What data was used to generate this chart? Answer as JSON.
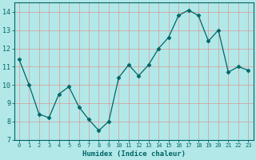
{
  "x": [
    0,
    1,
    2,
    3,
    4,
    5,
    6,
    7,
    8,
    9,
    10,
    11,
    12,
    13,
    14,
    15,
    16,
    17,
    18,
    19,
    20,
    21,
    22,
    23
  ],
  "y": [
    11.4,
    10.0,
    8.4,
    8.2,
    9.5,
    9.9,
    8.8,
    8.1,
    7.5,
    8.0,
    10.4,
    11.1,
    10.5,
    11.1,
    12.0,
    12.6,
    13.8,
    14.1,
    13.8,
    12.4,
    13.0,
    10.7,
    11.0,
    10.8
  ],
  "xlabel": "Humidex (Indice chaleur)",
  "xtick_labels": [
    "0",
    "1",
    "2",
    "3",
    "4",
    "5",
    "6",
    "7",
    "8",
    "9",
    "10",
    "11",
    "12",
    "13",
    "14",
    "15",
    "16",
    "17",
    "18",
    "19",
    "20",
    "21",
    "22",
    "23"
  ],
  "yticks": [
    7,
    8,
    9,
    10,
    11,
    12,
    13,
    14
  ],
  "ylim": [
    7,
    14.5
  ],
  "xlim": [
    -0.5,
    23.5
  ],
  "line_color": "#006666",
  "marker": "D",
  "markersize": 2.5,
  "bg_color": "#b3e8e8",
  "grid_color": "#d89898",
  "tick_color": "#006666",
  "label_color": "#006666",
  "spine_color": "#006666"
}
